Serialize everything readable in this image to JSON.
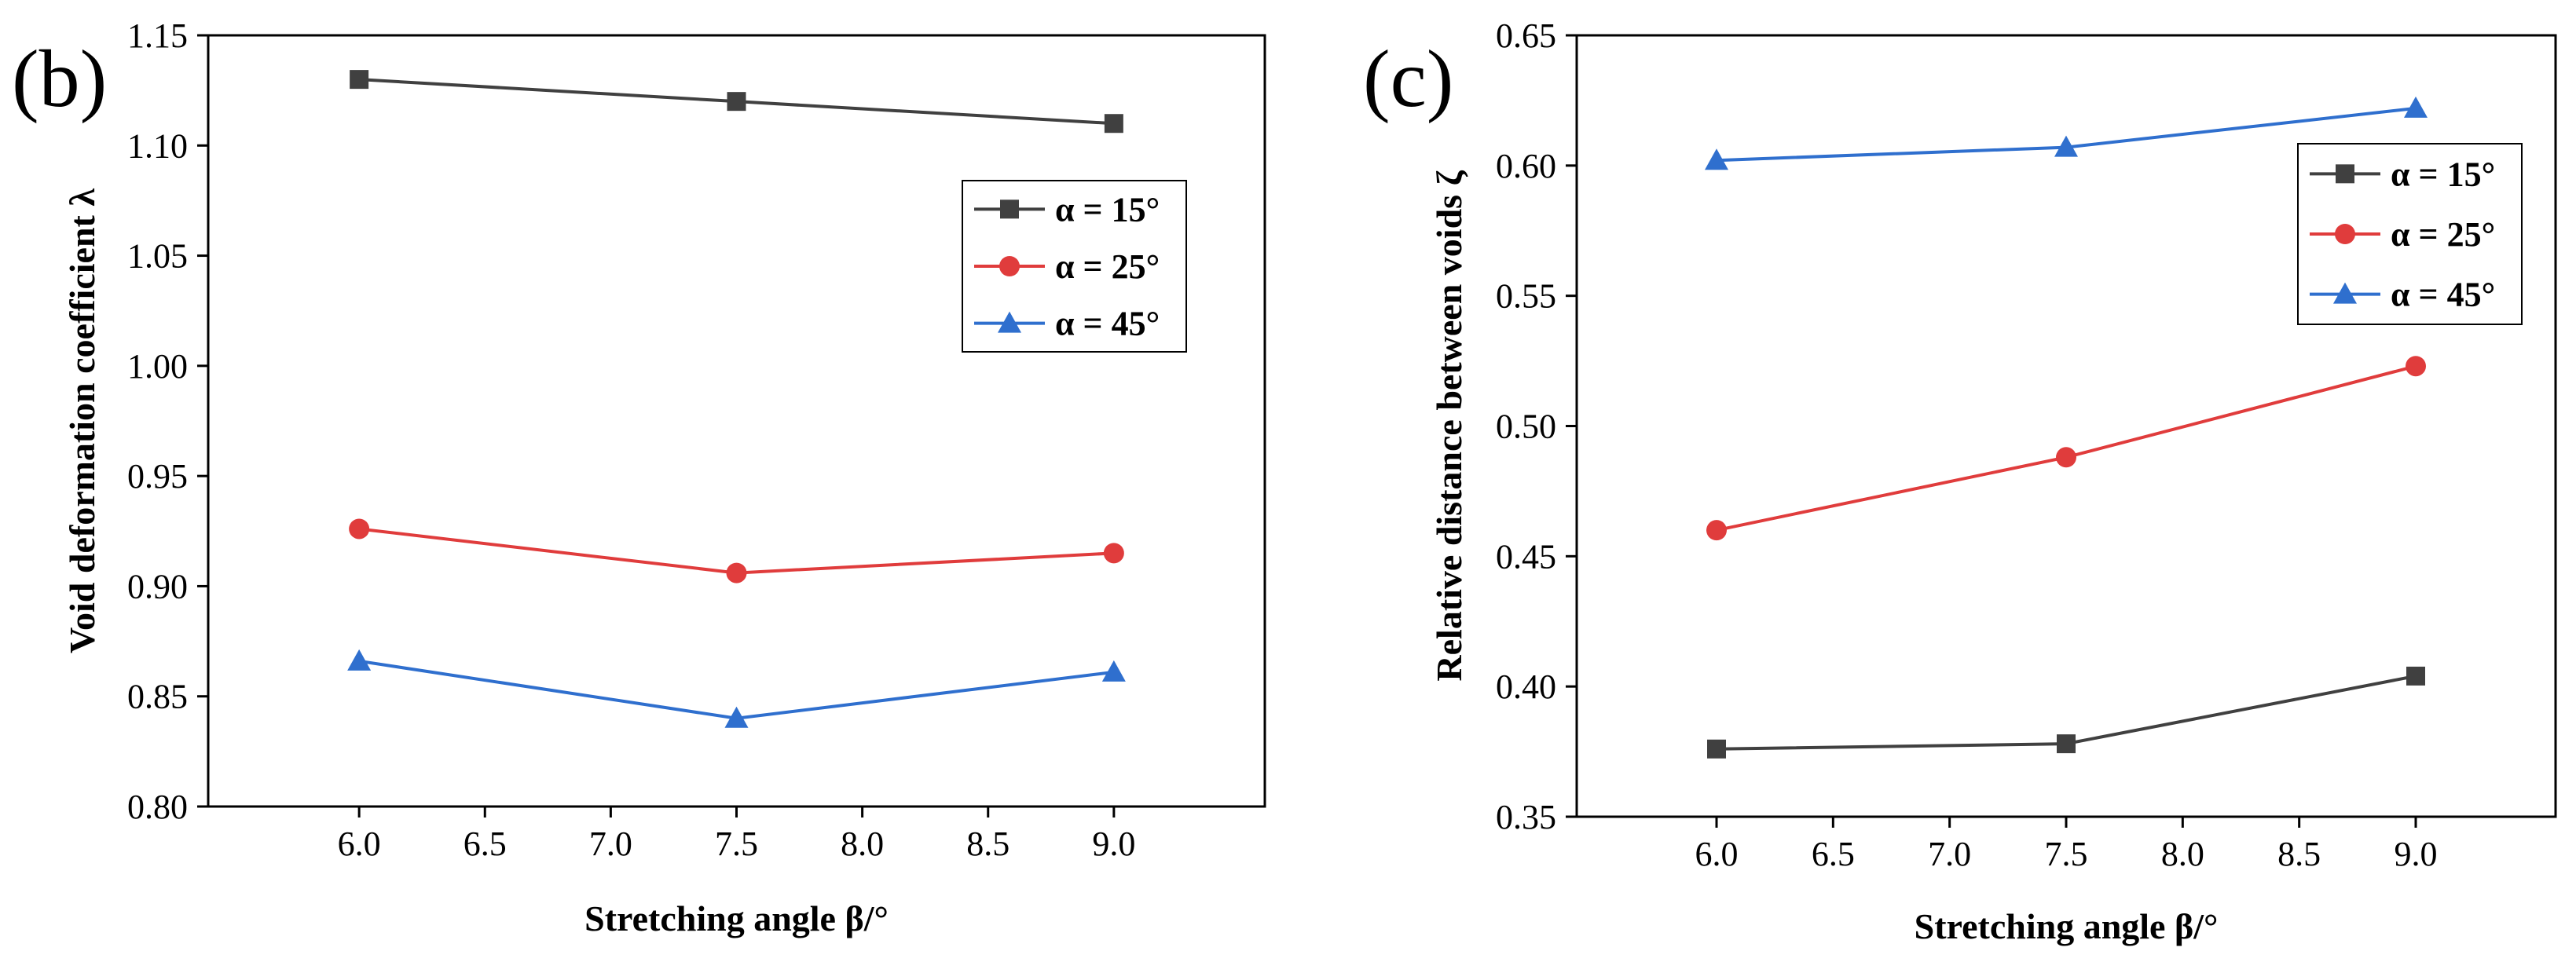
{
  "chart_data": [
    {
      "panel_label": "(b)",
      "type": "line",
      "xlabel": "Stretching angle β/°",
      "ylabel": "Void deformation coefficient λ",
      "x": [
        6.0,
        7.5,
        9.0
      ],
      "xlim": [
        5.4,
        9.6
      ],
      "ylim": [
        0.8,
        1.15
      ],
      "xticks": [
        "6.0",
        "6.5",
        "7.0",
        "7.5",
        "8.0",
        "8.5",
        "9.0"
      ],
      "yticks": [
        "0.80",
        "0.85",
        "0.90",
        "0.95",
        "1.00",
        "1.05",
        "1.10",
        "1.15"
      ],
      "legend_position": "upper-right",
      "series": [
        {
          "name": "α = 15°",
          "marker": "square",
          "color": "#404040",
          "values": [
            1.13,
            1.12,
            1.11
          ]
        },
        {
          "name": "α = 25°",
          "marker": "circle",
          "color": "#e03c3c",
          "values": [
            0.926,
            0.906,
            0.915
          ]
        },
        {
          "name": "α = 45°",
          "marker": "triangle",
          "color": "#2f6fce",
          "values": [
            0.866,
            0.84,
            0.861
          ]
        }
      ]
    },
    {
      "panel_label": "(c)",
      "type": "line",
      "xlabel": "Stretching angle β/°",
      "ylabel": "Relative distance between voids ζ",
      "x": [
        6.0,
        7.5,
        9.0
      ],
      "xlim": [
        5.4,
        9.6
      ],
      "ylim": [
        0.35,
        0.65
      ],
      "xticks": [
        "6.0",
        "6.5",
        "7.0",
        "7.5",
        "8.0",
        "8.5",
        "9.0"
      ],
      "yticks": [
        "0.35",
        "0.40",
        "0.45",
        "0.50",
        "0.55",
        "0.60",
        "0.65"
      ],
      "legend_position": "upper-right",
      "series": [
        {
          "name": "α = 15°",
          "marker": "square",
          "color": "#404040",
          "values": [
            0.376,
            0.378,
            0.404
          ]
        },
        {
          "name": "α = 25°",
          "marker": "circle",
          "color": "#e03c3c",
          "values": [
            0.46,
            0.488,
            0.523
          ]
        },
        {
          "name": "α = 45°",
          "marker": "triangle",
          "color": "#2f6fce",
          "values": [
            0.602,
            0.607,
            0.622
          ]
        }
      ]
    }
  ]
}
